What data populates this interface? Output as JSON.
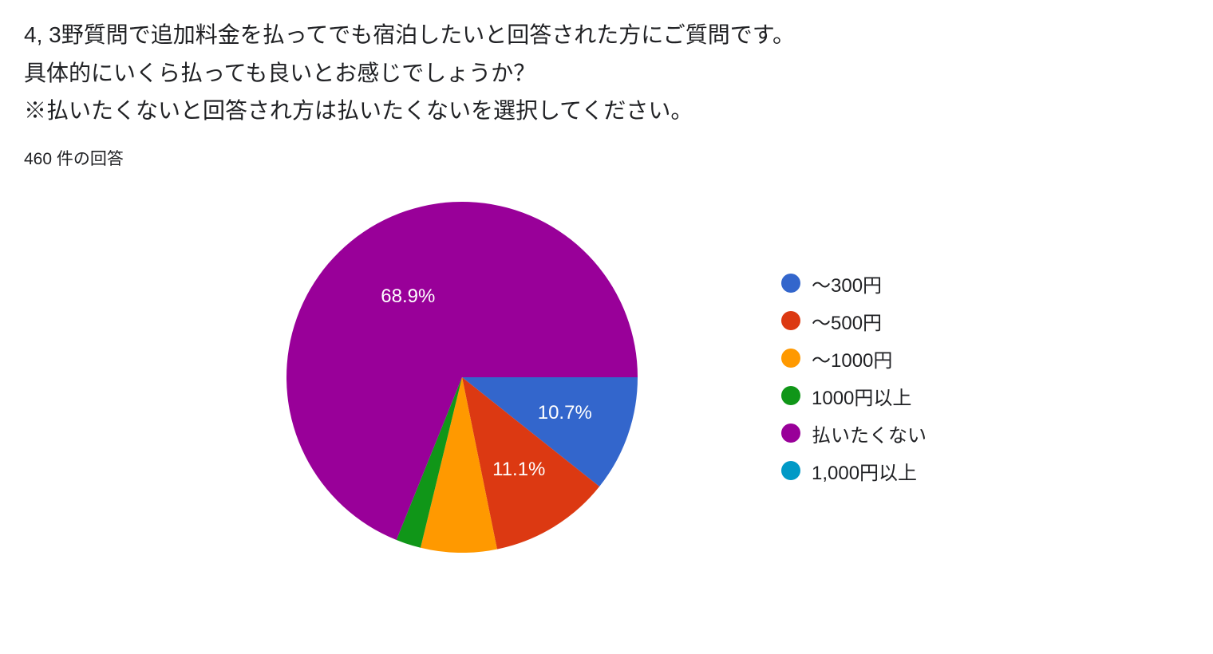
{
  "question": {
    "line1": "4, 3野質問で追加料金を払ってでも宿泊したいと回答された方にご質問です。",
    "line2": "具体的にいくら払っても良いとお感じでしょうか？",
    "line3": "※払いたくないと回答され方は払いたくないを選択してください。"
  },
  "response_count": "460 件の回答",
  "pie_chart": {
    "type": "pie",
    "background_color": "#ffffff",
    "diameter": 440,
    "slices": [
      {
        "label": "～300円",
        "value": 10.7,
        "color": "#3366cc",
        "show_label": true
      },
      {
        "label": "～500円",
        "value": 11.1,
        "color": "#dc3912",
        "show_label": true
      },
      {
        "label": "～1000円",
        "value": 7.0,
        "color": "#ff9900",
        "show_label": false
      },
      {
        "label": "1000円以上",
        "value": 2.3,
        "color": "#109618",
        "show_label": false
      },
      {
        "label": "払いたくない",
        "value": 68.9,
        "color": "#990099",
        "show_label": true
      },
      {
        "label": "1,000円以上",
        "value": 0.0,
        "color": "#0099c6",
        "show_label": false
      }
    ],
    "label_fontsize": 24,
    "label_color": "#ffffff"
  },
  "legend": {
    "items": [
      {
        "label": "～300円",
        "color": "#3366cc"
      },
      {
        "label": "～500円",
        "color": "#dc3912"
      },
      {
        "label": "～1000円",
        "color": "#ff9900"
      },
      {
        "label": "1000円以上",
        "color": "#109618"
      },
      {
        "label": "払いたくない",
        "color": "#990099"
      },
      {
        "label": "1,000円以上",
        "color": "#0099c6"
      }
    ],
    "label_fontsize": 24,
    "swatch_size": 24
  }
}
